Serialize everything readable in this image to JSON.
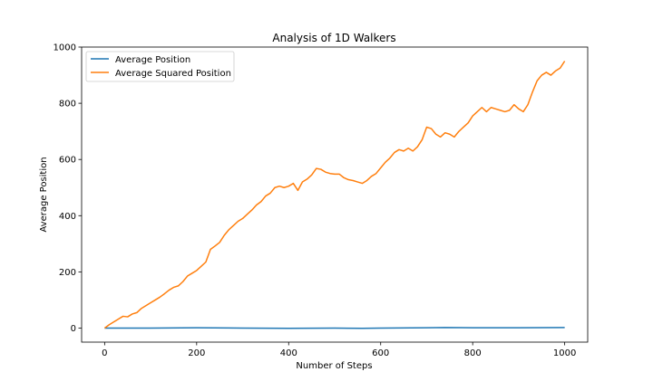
{
  "chart_data": {
    "type": "line",
    "title": "Analysis of 1D Walkers",
    "xlabel": "Number of Steps",
    "ylabel": "Average Position",
    "xlim": [
      -50,
      1050
    ],
    "ylim": [
      -50,
      1000
    ],
    "xticks": [
      0,
      200,
      400,
      600,
      800,
      1000
    ],
    "yticks": [
      0,
      200,
      400,
      600,
      800,
      1000
    ],
    "grid": false,
    "legend_position": "top-left",
    "series": [
      {
        "name": "Average Position",
        "color": "#1f77b4",
        "x": [
          0,
          100,
          200,
          300,
          400,
          500,
          560,
          600,
          700,
          740,
          800,
          900,
          1000
        ],
        "y": [
          0,
          0,
          1,
          0,
          -1,
          0,
          -1,
          0,
          1,
          2,
          1,
          1,
          2
        ]
      },
      {
        "name": "Average Squared Position",
        "color": "#ff7f0e",
        "x": [
          0,
          10,
          20,
          30,
          40,
          50,
          60,
          70,
          80,
          90,
          100,
          110,
          120,
          130,
          140,
          150,
          160,
          170,
          180,
          190,
          200,
          210,
          220,
          230,
          240,
          250,
          260,
          270,
          280,
          290,
          300,
          310,
          320,
          330,
          340,
          350,
          360,
          370,
          380,
          390,
          400,
          410,
          420,
          430,
          440,
          450,
          460,
          470,
          480,
          490,
          500,
          510,
          520,
          530,
          540,
          550,
          560,
          570,
          580,
          590,
          600,
          610,
          620,
          630,
          640,
          650,
          660,
          670,
          680,
          690,
          700,
          710,
          720,
          730,
          740,
          750,
          760,
          770,
          780,
          790,
          800,
          810,
          820,
          830,
          840,
          850,
          860,
          870,
          880,
          890,
          900,
          910,
          920,
          930,
          940,
          950,
          960,
          970,
          980,
          990,
          1000
        ],
        "y": [
          0,
          12,
          22,
          32,
          42,
          40,
          50,
          55,
          70,
          80,
          90,
          100,
          110,
          122,
          135,
          145,
          150,
          165,
          185,
          195,
          205,
          220,
          235,
          280,
          292,
          305,
          330,
          350,
          365,
          380,
          390,
          405,
          420,
          438,
          450,
          470,
          480,
          500,
          505,
          500,
          505,
          515,
          490,
          520,
          530,
          545,
          568,
          565,
          555,
          550,
          548,
          548,
          535,
          528,
          525,
          520,
          515,
          525,
          540,
          550,
          570,
          590,
          605,
          625,
          635,
          630,
          640,
          630,
          645,
          670,
          715,
          710,
          690,
          680,
          695,
          690,
          680,
          700,
          715,
          730,
          755,
          770,
          785,
          770,
          785,
          780,
          775,
          770,
          775,
          795,
          780,
          770,
          795,
          840,
          880,
          900,
          910,
          900,
          915,
          925,
          950
        ]
      }
    ]
  }
}
